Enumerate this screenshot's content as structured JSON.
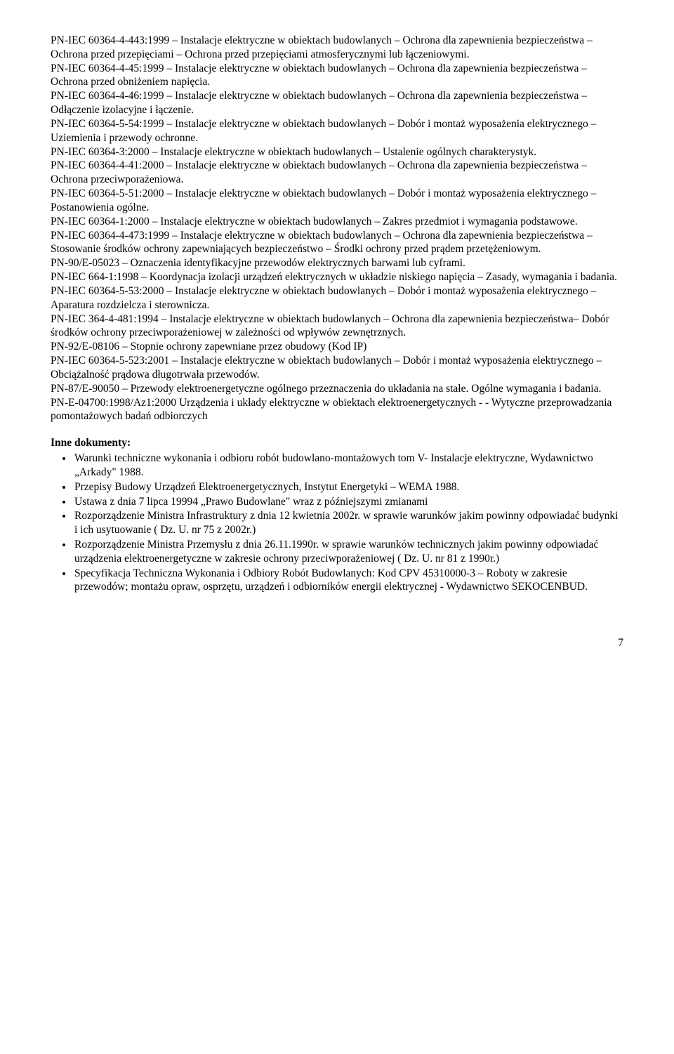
{
  "standards": [
    "PN-IEC 60364-4-443:1999 – Instalacje elektryczne w obiektach budowlanych – Ochrona dla zapewnienia bezpieczeństwa – Ochrona przed przepięciami – Ochrona przed przepięciami atmosferycznymi lub łączeniowymi.",
    "PN-IEC 60364-4-45:1999 – Instalacje elektryczne w obiektach budowlanych – Ochrona dla zapewnienia bezpieczeństwa – Ochrona przed obniżeniem napięcia.",
    "PN-IEC 60364-4-46:1999 – Instalacje elektryczne w obiektach budowlanych – Ochrona dla zapewnienia bezpieczeństwa – Odłączenie izolacyjne i łączenie.",
    "PN-IEC 60364-5-54:1999 – Instalacje elektryczne w obiektach budowlanych – Dobór i montaż wyposażenia elektrycznego – Uziemienia i przewody ochronne.",
    "PN-IEC 60364-3:2000 – Instalacje elektryczne w obiektach budowlanych – Ustalenie ogólnych charakterystyk.",
    "PN-IEC 60364-4-41:2000 – Instalacje elektryczne w obiektach budowlanych – Ochrona dla zapewnienia bezpieczeństwa – Ochrona przeciwporażeniowa.",
    "PN-IEC 60364-5-51:2000 – Instalacje elektryczne w obiektach budowlanych – Dobór i montaż wyposażenia elektrycznego – Postanowienia ogólne.",
    "PN-IEC 60364-1:2000 – Instalacje elektryczne w obiektach budowlanych – Zakres przedmiot i wymagania podstawowe.",
    "PN-IEC 60364-4-473:1999 – Instalacje elektryczne w obiektach budowlanych – Ochrona dla zapewnienia bezpieczeństwa – Stosowanie środków ochrony zapewniających bezpieczeństwo – Środki ochrony przed prądem przetężeniowym.",
    "PN-90/E-05023 – Oznaczenia identyfikacyjne przewodów elektrycznych barwami lub cyframi.",
    "PN-IEC 664-1:1998 – Koordynacja izolacji urządzeń elektrycznych w układzie niskiego napięcia – Zasady, wymagania i badania.",
    "PN-IEC 60364-5-53:2000 – Instalacje elektryczne w obiektach budowlanych – Dobór i montaż wyposażenia elektrycznego – Aparatura rozdzielcza i sterownicza.",
    "PN-IEC 364-4-481:1994 – Instalacje elektryczne w obiektach budowlanych – Ochrona dla zapewnienia bezpieczeństwa– Dobór środków ochrony przeciwporażeniowej w zależności od wpływów zewnętrznych.",
    "PN-92/E-08106 – Stopnie ochrony zapewniane przez obudowy (Kod IP)",
    "PN-IEC 60364-5-523:2001 – Instalacje elektryczne w obiektach budowlanych – Dobór i montaż wyposażenia elektrycznego – Obciążalność prądowa długotrwała przewodów.",
    "PN-87/E-90050 – Przewody elektroenergetyczne ogólnego przeznaczenia do układania na stałe. Ogólne wymagania i badania.",
    "PN-E-04700:1998/Az1:2000  Urządzenia i układy elektryczne w obiektach elektroenergetycznych - - Wytyczne przeprowadzania pomontażowych badań odbiorczych"
  ],
  "other_docs_heading": "Inne dokumenty:",
  "other_docs": [
    "Warunki techniczne wykonania i odbioru robót budowlano-montażowych tom V- Instalacje elektryczne,  Wydawnictwo „Arkady\" 1988.",
    "Przepisy Budowy Urządzeń Elektroenergetycznych, Instytut Energetyki – WEMA 1988.",
    "Ustawa z dnia 7 lipca 19994 „Prawo Budowlane\" wraz z późniejszymi zmianami",
    "Rozporządzenie Ministra Infrastruktury z dnia 12 kwietnia 2002r. w sprawie warunków jakim powinny odpowiadać  budynki i ich usytuowanie ( Dz. U. nr 75 z 2002r.)",
    "Rozporządzenie Ministra Przemysłu z dnia 26.11.1990r. w sprawie warunków technicznych jakim  powinny odpowiadać urządzenia elektroenergetyczne w zakresie ochrony przeciwporażeniowej ( Dz. U. nr 81 z 1990r.)",
    "Specyfikacja Techniczna Wykonania i Odbiory Robót Budowlanych: Kod CPV 45310000-3 – Roboty w zakresie przewodów; montażu opraw, osprzętu, urządzeń i odbiorników energii elektrycznej - Wydawnictwo SEKOCENBUD."
  ],
  "page_number": "7"
}
